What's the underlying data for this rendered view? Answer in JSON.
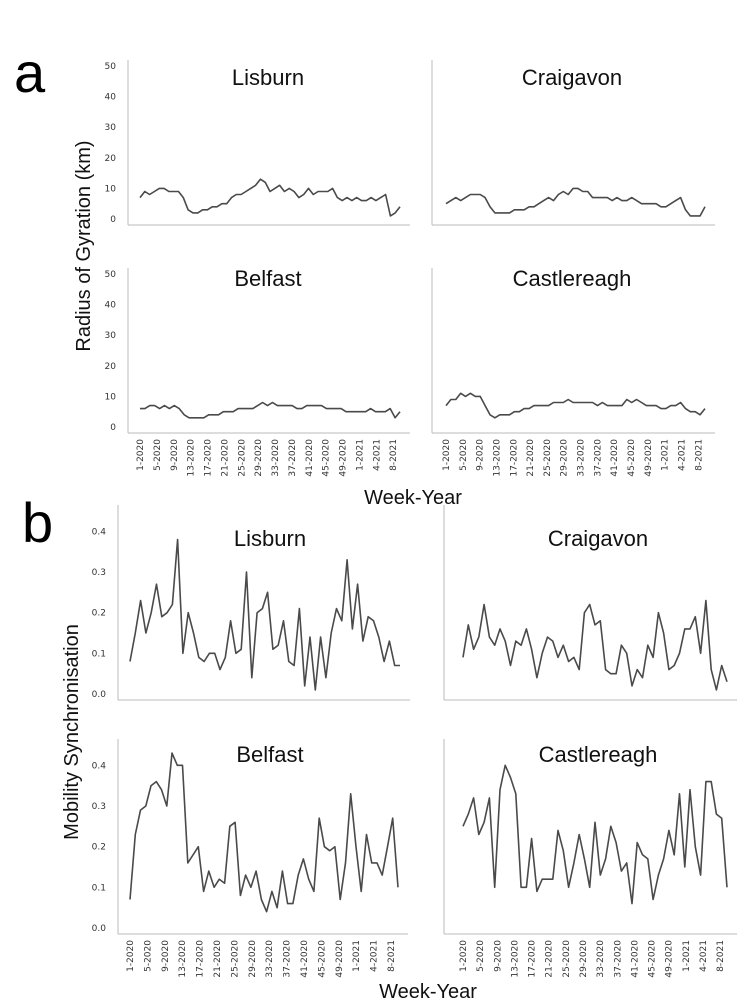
{
  "figure": {
    "panel_a_label": "a",
    "panel_b_label": "b",
    "panel_a_ylabel": "Radius of Gyration (km)",
    "panel_b_ylabel": "Mobility Synchronisation",
    "xlabel": "Week-Year",
    "line_color": "#4a4a4a"
  },
  "chart_data": [
    {
      "type": "line",
      "title": "Lisburn",
      "ylabel": "Radius of Gyration (km)",
      "xlabel": "Week-Year",
      "ylim": [
        0,
        50
      ],
      "yticks": [
        "0",
        "10",
        "20",
        "30",
        "40",
        "50"
      ],
      "values": [
        7,
        9,
        8,
        9,
        10,
        10,
        9,
        9,
        9,
        7,
        3,
        2,
        2,
        3,
        3,
        4,
        4,
        5,
        5,
        7,
        8,
        8,
        9,
        10,
        11,
        13,
        12,
        9,
        10,
        11,
        9,
        10,
        9,
        7,
        8,
        10,
        8,
        9,
        9,
        9,
        10,
        7,
        6,
        7,
        6,
        7,
        6,
        6,
        7,
        6,
        7,
        8,
        1,
        2,
        4
      ],
      "xtick_labels": [
        "1-2020",
        "5-2020",
        "9-2020",
        "13-2020",
        "17-2020",
        "21-2020",
        "25-2020",
        "29-2020",
        "33-2020",
        "37-2020",
        "41-2020",
        "45-2020",
        "49-2020",
        "1-2021",
        "4-2021",
        "8-2021"
      ]
    },
    {
      "type": "line",
      "title": "Craigavon",
      "ylim": [
        0,
        50
      ],
      "values": [
        5,
        6,
        7,
        6,
        7,
        8,
        8,
        8,
        7,
        4,
        2,
        2,
        2,
        2,
        3,
        3,
        3,
        4,
        4,
        5,
        6,
        7,
        6,
        8,
        9,
        8,
        10,
        10,
        9,
        9,
        7,
        7,
        7,
        7,
        6,
        7,
        6,
        6,
        7,
        6,
        5,
        5,
        5,
        5,
        4,
        4,
        5,
        6,
        7,
        3,
        1,
        1,
        1,
        4
      ],
      "xtick_labels": [
        "1-2020",
        "5-2020",
        "9-2020",
        "13-2020",
        "17-2020",
        "21-2020",
        "25-2020",
        "29-2020",
        "33-2020",
        "37-2020",
        "41-2020",
        "45-2020",
        "49-2020",
        "1-2021",
        "4-2021",
        "8-2021"
      ]
    },
    {
      "type": "line",
      "title": "Belfast",
      "ylim": [
        0,
        50
      ],
      "yticks": [
        "0",
        "10",
        "20",
        "30",
        "40",
        "50"
      ],
      "values": [
        6,
        6,
        7,
        7,
        6,
        7,
        6,
        7,
        6,
        4,
        3,
        3,
        3,
        3,
        4,
        4,
        4,
        5,
        5,
        5,
        6,
        6,
        6,
        6,
        7,
        8,
        7,
        8,
        7,
        7,
        7,
        7,
        6,
        6,
        7,
        7,
        7,
        7,
        6,
        6,
        6,
        6,
        5,
        5,
        5,
        5,
        5,
        6,
        5,
        5,
        5,
        6,
        3,
        5
      ],
      "xtick_labels": [
        "1-2020",
        "5-2020",
        "9-2020",
        "13-2020",
        "17-2020",
        "21-2020",
        "25-2020",
        "29-2020",
        "33-2020",
        "37-2020",
        "41-2020",
        "45-2020",
        "49-2020",
        "1-2021",
        "4-2021",
        "8-2021"
      ]
    },
    {
      "type": "line",
      "title": "Castlereagh",
      "ylim": [
        0,
        50
      ],
      "values": [
        7,
        9,
        9,
        11,
        10,
        11,
        10,
        10,
        7,
        4,
        3,
        4,
        4,
        4,
        5,
        5,
        6,
        6,
        7,
        7,
        7,
        7,
        8,
        8,
        8,
        9,
        8,
        8,
        8,
        8,
        8,
        7,
        8,
        7,
        7,
        7,
        7,
        9,
        8,
        9,
        8,
        7,
        7,
        7,
        6,
        6,
        7,
        7,
        8,
        6,
        5,
        5,
        4,
        6
      ],
      "xtick_labels": [
        "1-2020",
        "5-2020",
        "9-2020",
        "13-2020",
        "17-2020",
        "21-2020",
        "25-2020",
        "29-2020",
        "33-2020",
        "37-2020",
        "41-2020",
        "45-2020",
        "49-2020",
        "1-2021",
        "4-2021",
        "8-2021"
      ]
    },
    {
      "type": "line",
      "title": "Lisburn",
      "ylabel": "Mobility Synchronisation",
      "ylim": [
        0,
        0.45
      ],
      "yticks": [
        "0.0",
        "0.1",
        "0.2",
        "0.3",
        "0.4"
      ],
      "values": [
        0.08,
        0.15,
        0.23,
        0.15,
        0.2,
        0.27,
        0.19,
        0.2,
        0.22,
        0.38,
        0.1,
        0.2,
        0.15,
        0.09,
        0.08,
        0.1,
        0.1,
        0.06,
        0.09,
        0.18,
        0.1,
        0.11,
        0.3,
        0.04,
        0.2,
        0.21,
        0.25,
        0.11,
        0.12,
        0.18,
        0.08,
        0.07,
        0.21,
        0.02,
        0.14,
        0.01,
        0.14,
        0.04,
        0.15,
        0.21,
        0.18,
        0.33,
        0.16,
        0.27,
        0.13,
        0.19,
        0.18,
        0.14,
        0.08,
        0.13,
        0.07,
        0.07
      ]
    },
    {
      "type": "line",
      "title": "Craigavon",
      "ylim": [
        0,
        0.45
      ],
      "values": [
        0.09,
        0.17,
        0.11,
        0.14,
        0.22,
        0.14,
        0.12,
        0.16,
        0.13,
        0.07,
        0.13,
        0.12,
        0.16,
        0.11,
        0.04,
        0.1,
        0.14,
        0.13,
        0.09,
        0.12,
        0.08,
        0.09,
        0.06,
        0.2,
        0.22,
        0.17,
        0.18,
        0.06,
        0.05,
        0.05,
        0.12,
        0.1,
        0.02,
        0.06,
        0.04,
        0.12,
        0.09,
        0.2,
        0.15,
        0.06,
        0.07,
        0.1,
        0.16,
        0.16,
        0.19,
        0.1,
        0.23,
        0.06,
        0.01,
        0.07,
        0.03
      ]
    },
    {
      "type": "line",
      "title": "Belfast",
      "ylim": [
        0,
        0.45
      ],
      "yticks": [
        "0.0",
        "0.1",
        "0.2",
        "0.3",
        "0.4"
      ],
      "values": [
        0.07,
        0.23,
        0.29,
        0.3,
        0.35,
        0.36,
        0.34,
        0.3,
        0.43,
        0.4,
        0.4,
        0.16,
        0.18,
        0.2,
        0.09,
        0.14,
        0.1,
        0.12,
        0.11,
        0.25,
        0.26,
        0.08,
        0.13,
        0.1,
        0.14,
        0.07,
        0.04,
        0.09,
        0.05,
        0.14,
        0.06,
        0.06,
        0.13,
        0.17,
        0.12,
        0.09,
        0.27,
        0.2,
        0.19,
        0.2,
        0.07,
        0.16,
        0.33,
        0.2,
        0.09,
        0.23,
        0.16,
        0.16,
        0.13,
        0.2,
        0.27,
        0.1
      ]
    },
    {
      "type": "line",
      "title": "Castlereagh",
      "ylim": [
        0,
        0.45
      ],
      "values": [
        0.25,
        0.28,
        0.32,
        0.23,
        0.26,
        0.32,
        0.1,
        0.34,
        0.4,
        0.37,
        0.33,
        0.1,
        0.1,
        0.22,
        0.09,
        0.12,
        0.12,
        0.12,
        0.24,
        0.19,
        0.1,
        0.16,
        0.23,
        0.17,
        0.1,
        0.26,
        0.13,
        0.17,
        0.25,
        0.21,
        0.14,
        0.16,
        0.06,
        0.21,
        0.18,
        0.17,
        0.07,
        0.13,
        0.17,
        0.24,
        0.18,
        0.33,
        0.15,
        0.34,
        0.2,
        0.13,
        0.36,
        0.36,
        0.28,
        0.27,
        0.1
      ],
      "xtick_labels": [
        "1-2020",
        "5-2020",
        "9-2020",
        "13-2020",
        "17-2020",
        "21-2020",
        "25-2020",
        "29-2020",
        "33-2020",
        "37-2020",
        "41-2020",
        "45-2020",
        "49-2020",
        "1-2021",
        "4-2021",
        "8-2021"
      ]
    }
  ],
  "b_belfast_xtick_labels": [
    "1-2020",
    "5-2020",
    "9-2020",
    "13-2020",
    "17-2020",
    "21-2020",
    "25-2020",
    "29-2020",
    "33-2020",
    "37-2020",
    "41-2020",
    "45-2020",
    "49-2020",
    "1-2021",
    "4-2021",
    "8-2021"
  ]
}
